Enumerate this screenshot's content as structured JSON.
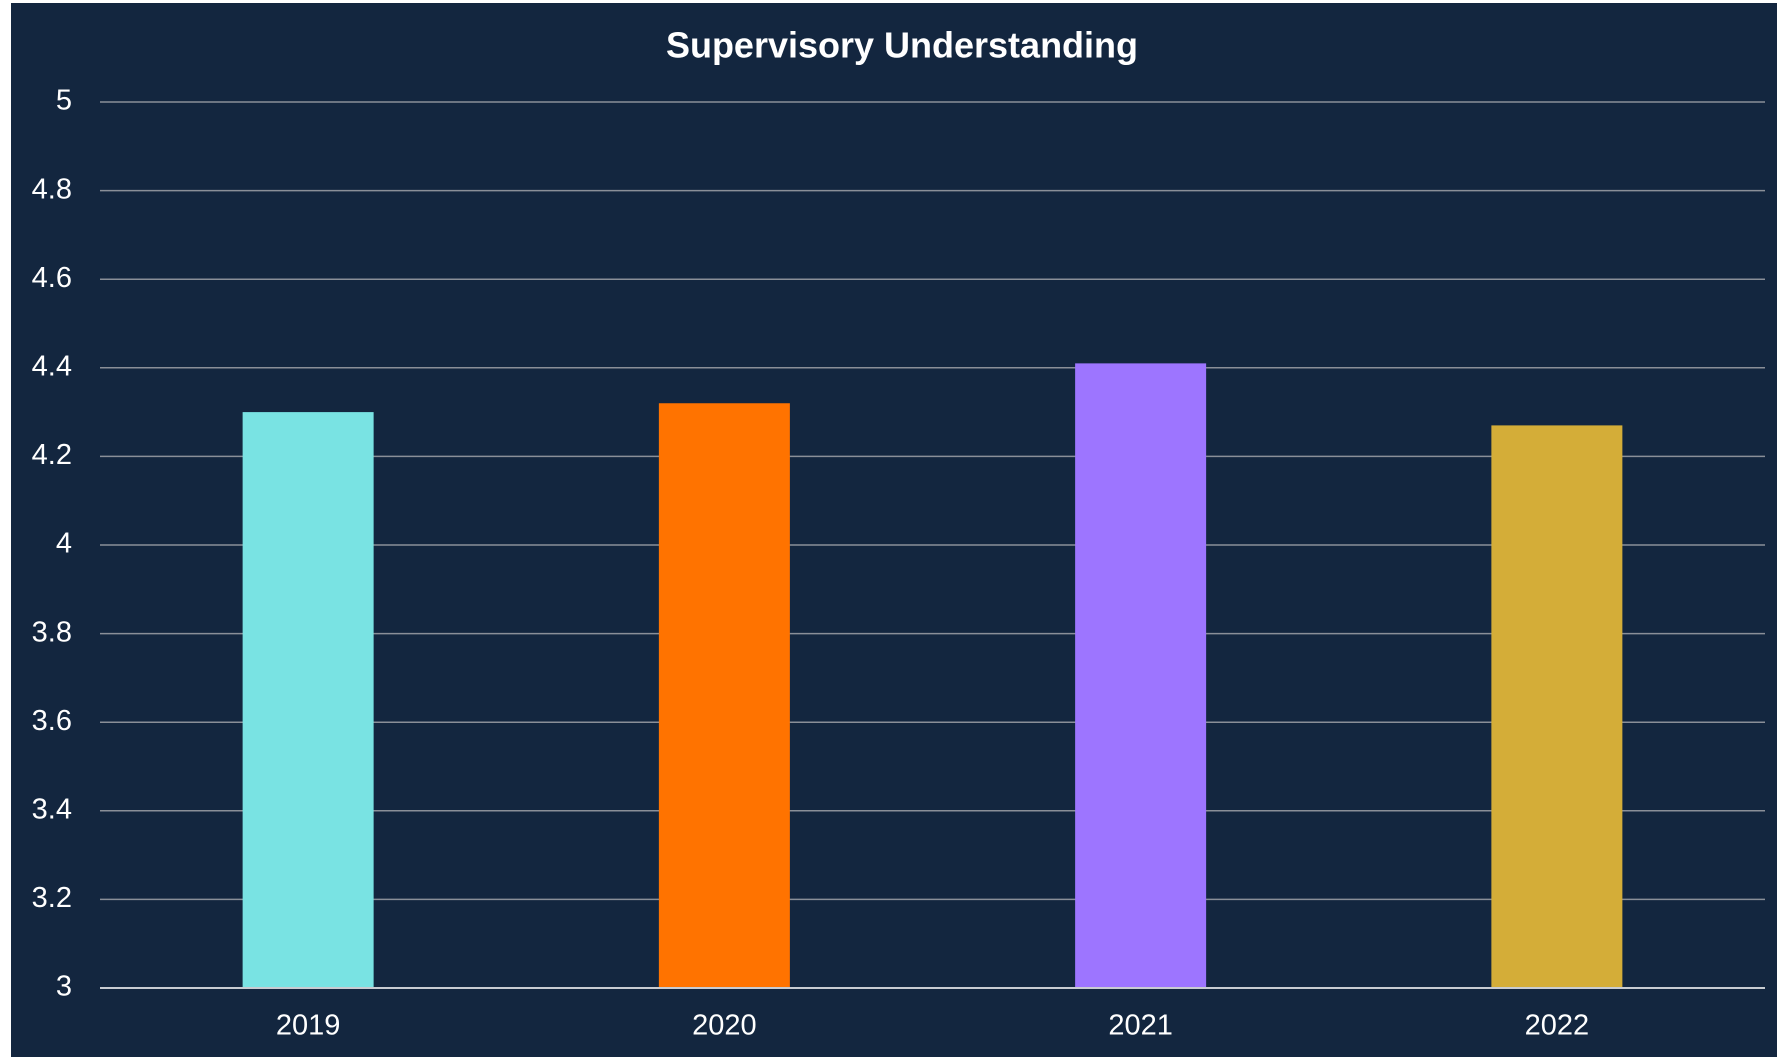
{
  "chart_data": {
    "type": "bar",
    "title": "Supervisory Understanding",
    "categories": [
      "2019",
      "2020",
      "2021",
      "2022"
    ],
    "values": [
      4.3,
      4.32,
      4.41,
      4.27
    ],
    "colors": [
      "#79e3e3",
      "#ff7300",
      "#9d75ff",
      "#d4ad38"
    ],
    "ylim": [
      3,
      5
    ],
    "yticks": [
      3,
      3.2,
      3.4,
      3.6,
      3.8,
      4,
      4.2,
      4.4,
      4.6,
      4.8,
      5
    ],
    "grid": true
  }
}
